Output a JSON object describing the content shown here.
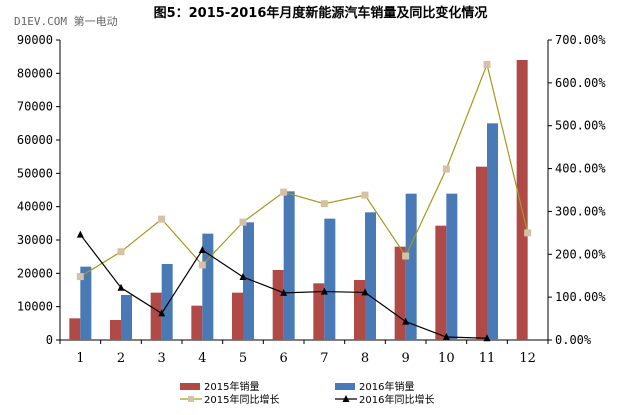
{
  "page": {
    "title": "图5：2015-2016年月度新能源汽车销量及同比变化情况",
    "watermark": "D1EV.COM 第一电动"
  },
  "colors": {
    "bar2015": "#b04a47",
    "bar2016": "#4a7ab6",
    "line2015": "#a39a1c",
    "marker2015": "#d4c1a6",
    "line2016": "#000000"
  },
  "chart_data": {
    "type": "bar",
    "categories": [
      "1",
      "2",
      "3",
      "4",
      "5",
      "6",
      "7",
      "8",
      "9",
      "10",
      "11",
      "12"
    ],
    "series": [
      {
        "name": "2015年销量",
        "type": "bar",
        "axis": "left",
        "values": [
          6500,
          6000,
          14200,
          10300,
          14200,
          21000,
          17000,
          18000,
          28000,
          34300,
          52000,
          84000
        ]
      },
      {
        "name": "2016年销量",
        "type": "bar",
        "axis": "left",
        "values": [
          22000,
          13500,
          22800,
          31900,
          35300,
          44600,
          36400,
          38300,
          43900,
          43900,
          65000,
          null
        ]
      },
      {
        "name": "2015年同比增长",
        "type": "line",
        "axis": "right",
        "values": [
          1.48,
          2.06,
          2.82,
          1.75,
          2.75,
          3.45,
          3.18,
          3.38,
          1.96,
          3.99,
          6.43,
          2.5
        ]
      },
      {
        "name": "2016年同比增长",
        "type": "line",
        "axis": "right",
        "values": [
          2.46,
          1.22,
          0.62,
          2.1,
          1.47,
          1.1,
          1.13,
          1.11,
          0.43,
          0.07,
          0.04,
          null
        ]
      }
    ],
    "left_axis": {
      "ylim": [
        0,
        90000
      ],
      "ticks": [
        "0",
        "10000",
        "20000",
        "30000",
        "40000",
        "50000",
        "60000",
        "70000",
        "80000",
        "90000"
      ]
    },
    "right_axis": {
      "ylim": [
        0,
        7
      ],
      "ticks": [
        "0.00%",
        "100.00%",
        "200.00%",
        "300.00%",
        "400.00%",
        "500.00%",
        "600.00%",
        "700.00%"
      ]
    },
    "legend_position": "bottom",
    "grid": false
  }
}
